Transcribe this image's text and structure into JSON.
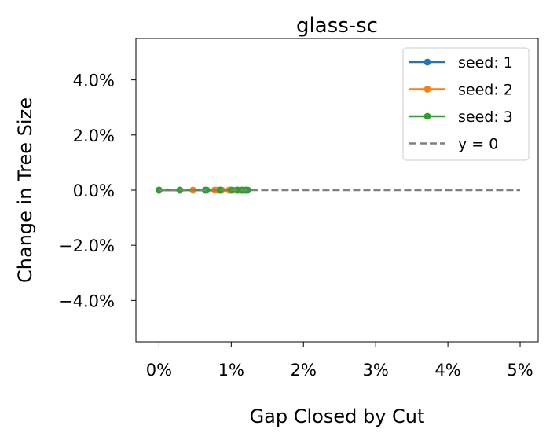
{
  "chart_data": {
    "type": "scatter",
    "title": "glass-sc",
    "xlabel": "Gap Closed by Cut",
    "ylabel": "Change in Tree Size",
    "xlim": [
      -0.0032,
      0.0525
    ],
    "ylim": [
      -0.055,
      0.055
    ],
    "x_ticks": [
      0,
      0.01,
      0.02,
      0.03,
      0.04,
      0.05
    ],
    "x_tick_labels": [
      "0%",
      "1%",
      "2%",
      "3%",
      "4%",
      "5%"
    ],
    "y_ticks": [
      -0.04,
      -0.02,
      0,
      0.02,
      0.04
    ],
    "y_tick_labels": [
      "−4.0%",
      "−2.0%",
      "0.0%",
      "2.0%",
      "4.0%"
    ],
    "grid": false,
    "legend_position": "upper right",
    "series": [
      {
        "name": "seed: 1",
        "color": "#1f77b4",
        "style": "line-marker",
        "x": [
          0.0,
          0.0029,
          0.0064,
          0.0084,
          0.0099,
          0.0109,
          0.0115,
          0.0118,
          0.0121
        ],
        "y": [
          0,
          0,
          0,
          0,
          0,
          0,
          0,
          0,
          0
        ]
      },
      {
        "name": "seed: 2",
        "color": "#ff7f0e",
        "style": "line-marker",
        "x": [
          0.0,
          0.0047,
          0.0066,
          0.0077,
          0.0081,
          0.0087,
          0.0097,
          0.0106,
          0.0114
        ],
        "y": [
          0,
          0,
          0,
          0,
          0,
          0,
          0,
          0,
          0
        ]
      },
      {
        "name": "seed: 3",
        "color": "#2ca02c",
        "style": "line-marker",
        "x": [
          0.0,
          0.0029,
          0.0066,
          0.0085,
          0.0101,
          0.0109,
          0.0115,
          0.0121,
          0.0123
        ],
        "y": [
          0,
          0,
          0,
          0,
          0,
          0,
          0,
          0,
          0
        ]
      },
      {
        "name": "y = 0",
        "color": "#808080",
        "style": "dashed",
        "x": [
          0.0,
          0.05
        ],
        "y": [
          0,
          0
        ]
      }
    ]
  }
}
